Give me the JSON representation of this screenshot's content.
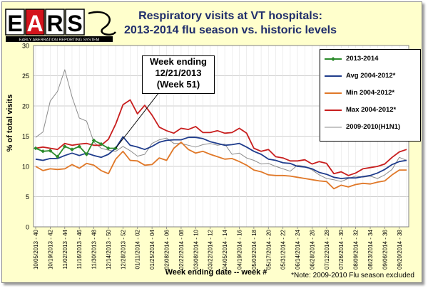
{
  "logo": {
    "letters": [
      "E",
      "A",
      "R",
      "S"
    ],
    "tagline": "EARLY ABERRATION REPORTING SYSTEM"
  },
  "title_lines": [
    "Respiratory visits at VT hospitals:",
    "2013-2014 flu season vs. historic levels"
  ],
  "callout": {
    "lines": [
      "Week ending",
      "12/21/2013",
      "(Week 51)"
    ]
  },
  "footnote": "*Note: 2009-2010 Flu season excluded",
  "colors": {
    "2013-2014": "#2a8a2a",
    "avg": "#1f3c8c",
    "min": "#e07828",
    "max": "#c81e1e",
    "h1n1": "#8c8c8c",
    "background": "#ffffcc"
  },
  "chart_data": {
    "type": "line",
    "title": "Respiratory visits at VT hospitals: 2013-2014 flu season vs. historic levels",
    "xlabel": "Week ending date -- week #",
    "ylabel": "% of total visits",
    "ylim": [
      0,
      30
    ],
    "yticks": [
      0,
      5,
      10,
      15,
      20,
      25,
      30
    ],
    "grid": true,
    "legend": "top-right",
    "tick_labels": [
      "10/05/2013 - 40",
      "10/19/2013 - 42",
      "11/02/2013 - 44",
      "11/16/2013 - 46",
      "11/30/2013 - 48",
      "12/14/2013 - 50",
      "12/28/2013 - 52",
      "01/11/2014 - 02",
      "01/25/2014 - 04",
      "02/08/2014 - 06",
      "02/22/2014 - 08",
      "03/08/2014 - 10",
      "03/22/2014 - 12",
      "04/05/2014 - 14",
      "04/19/2014 - 16",
      "05/03/2014 - 18",
      "05/17/2014 - 20",
      "05/31/2014 - 22",
      "06/14/2014 - 24",
      "06/28/2014 - 26",
      "07/12/2014 - 28",
      "07/26/2014 - 30",
      "08/09/2014 - 32",
      "08/23/2014 - 34",
      "09/06/2014 - 36",
      "09/20/2014 - 38"
    ],
    "n_weeks": 52,
    "series": [
      {
        "name": "2013-2014",
        "key": "2013-2014",
        "marker": "diamond",
        "values": [
          13.0,
          12.5,
          12.6,
          11.6,
          13.3,
          12.8,
          13.3,
          12.0,
          14.3,
          13.7,
          13.0,
          13.0
        ]
      },
      {
        "name": "Avg 2004-2012*",
        "key": "avg",
        "values": [
          11.2,
          11.0,
          11.3,
          11.3,
          11.8,
          12.2,
          11.8,
          12.2,
          11.8,
          11.5,
          12.0,
          13.0,
          14.9,
          13.5,
          13.2,
          12.8,
          13.3,
          14.0,
          14.3,
          14.4,
          14.4,
          14.8,
          14.8,
          14.6,
          14.1,
          13.8,
          13.5,
          13.6,
          13.8,
          13.2,
          12.5,
          12.0,
          11.2,
          11.0,
          10.6,
          10.5,
          10.0,
          9.9,
          9.6,
          9.0,
          8.7,
          8.2,
          8.0,
          8.1,
          8.1,
          8.3,
          8.5,
          8.9,
          9.5,
          10.3,
          10.8,
          11.0
        ]
      },
      {
        "name": "Min 2004-2012*",
        "key": "min",
        "values": [
          10.0,
          9.3,
          9.6,
          9.5,
          9.6,
          10.3,
          9.7,
          10.5,
          10.2,
          9.3,
          8.8,
          11.2,
          12.5,
          11.0,
          10.9,
          10.2,
          10.3,
          11.4,
          11.0,
          13.0,
          14.0,
          12.8,
          12.2,
          12.5,
          12.0,
          11.6,
          11.2,
          11.3,
          10.8,
          10.2,
          9.4,
          9.1,
          8.6,
          8.5,
          8.5,
          8.4,
          8.2,
          8.0,
          7.8,
          7.6,
          7.5,
          6.3,
          6.9,
          6.6,
          7.0,
          7.2,
          7.1,
          7.4,
          7.6,
          8.6,
          9.4,
          9.4
        ]
      },
      {
        "name": "Max 2004-2012*",
        "key": "max",
        "values": [
          13.0,
          13.2,
          13.0,
          12.8,
          13.8,
          13.5,
          13.7,
          13.8,
          13.5,
          13.5,
          14.5,
          17.0,
          20.2,
          21.0,
          18.7,
          20.1,
          18.5,
          16.5,
          15.9,
          15.5,
          16.3,
          16.1,
          16.6,
          15.6,
          15.6,
          15.9,
          15.5,
          15.6,
          16.3,
          15.5,
          13.0,
          12.5,
          12.8,
          11.6,
          11.4,
          10.9,
          10.9,
          11.1,
          10.4,
          10.8,
          10.5,
          8.8,
          9.1,
          8.5,
          8.9,
          9.6,
          9.8,
          10.0,
          10.4,
          11.5,
          12.4,
          12.8
        ]
      },
      {
        "name": "2009-2010(H1N1)",
        "key": "h1n1",
        "values": [
          14.8,
          15.7,
          20.8,
          22.4,
          26.0,
          21.5,
          18.0,
          17.5,
          14.0,
          13.0,
          12.7,
          12.5,
          13.3,
          12.6,
          11.7,
          12.0,
          13.8,
          14.4,
          14.7,
          13.8,
          13.8,
          13.5,
          13.2,
          13.6,
          13.8,
          13.5,
          13.7,
          12.0,
          12.2,
          11.4,
          11.0,
          10.4,
          10.5,
          10.0,
          9.6,
          9.2,
          10.2,
          10.0,
          9.4,
          8.6,
          8.0,
          7.8,
          7.5,
          8.0,
          8.4,
          8.2,
          8.4,
          8.0,
          8.6,
          9.5,
          11.5,
          11.0
        ]
      }
    ]
  }
}
